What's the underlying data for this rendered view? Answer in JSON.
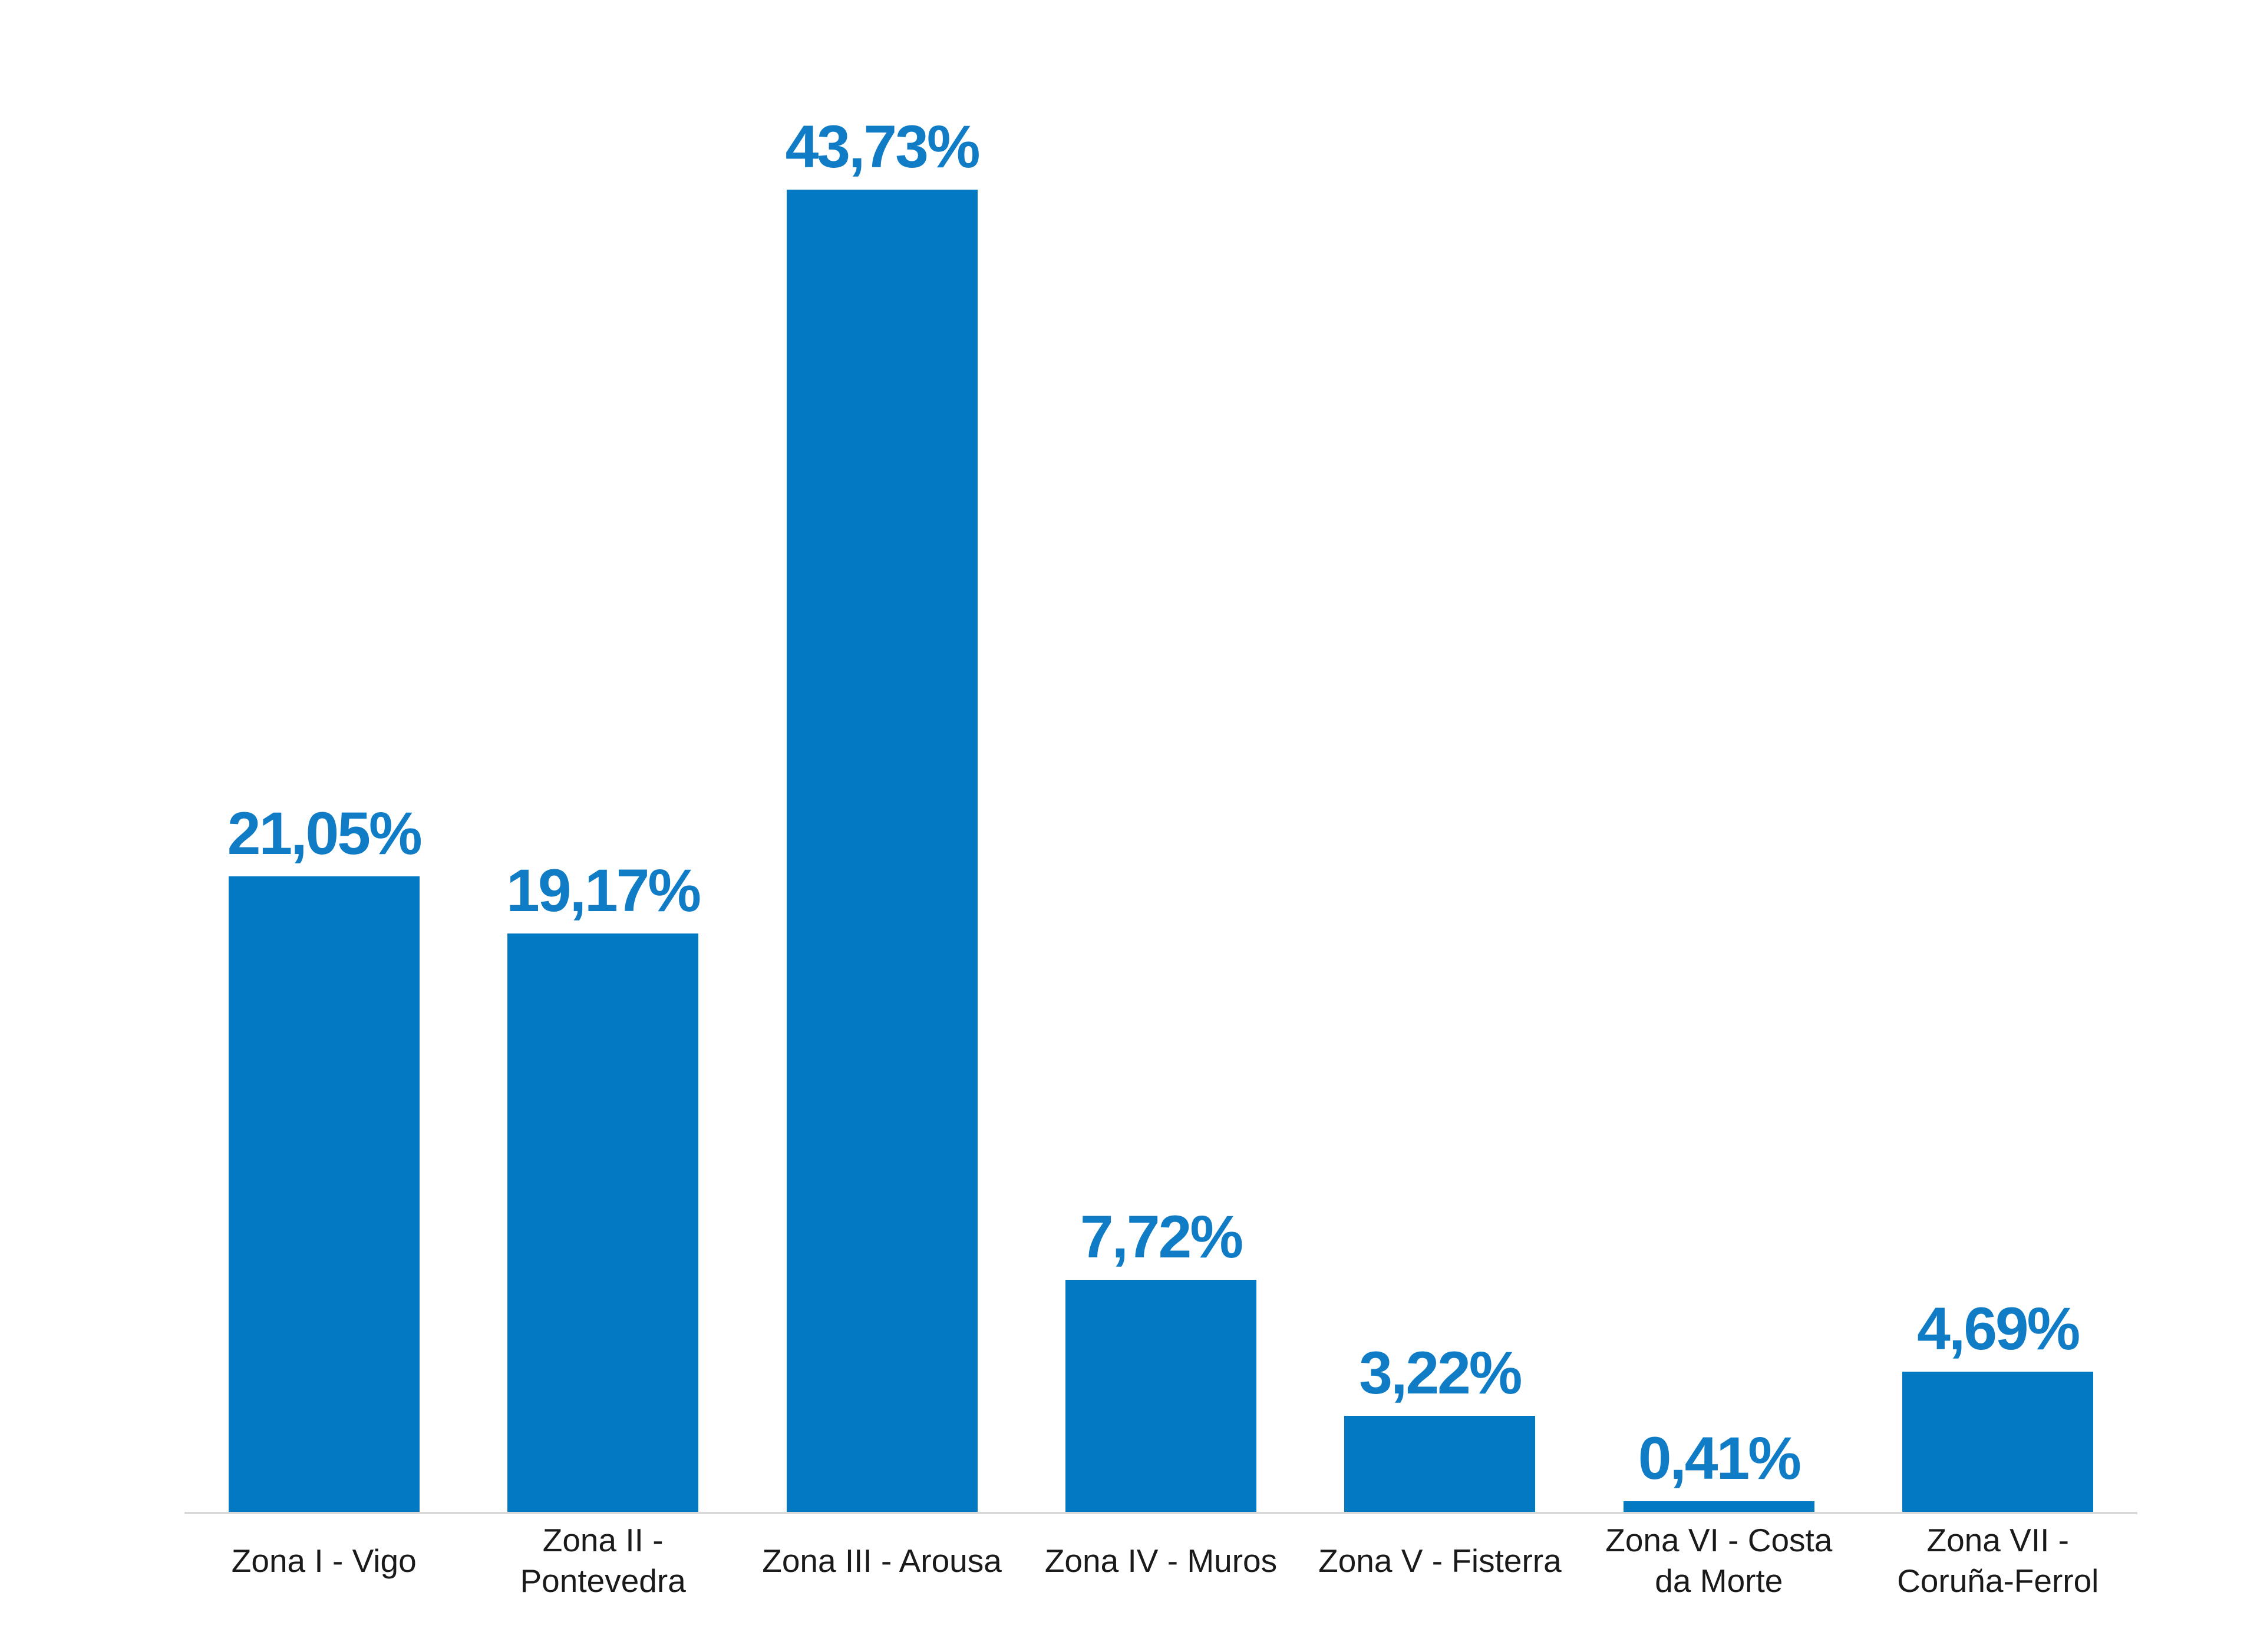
{
  "chart_data": {
    "type": "bar",
    "categories": [
      "Zona I - Vigo",
      "Zona II -\nPontevedra",
      "Zona III - Arousa",
      "Zona IV - Muros",
      "Zona V - Fisterra",
      "Zona VI - Costa\nda Morte",
      "Zona VII -\nCoruña-Ferrol"
    ],
    "values": [
      21.05,
      19.17,
      43.73,
      7.72,
      3.22,
      0.41,
      4.69
    ],
    "value_labels": [
      "21,05%",
      "19,17%",
      "43,73%",
      "7,72%",
      "3,22%",
      "0,41%",
      "4,69%"
    ],
    "xlabel": "",
    "ylabel": "",
    "ylim": [
      0,
      50
    ],
    "grid": false,
    "legend": false,
    "data_label_position": "above-bar",
    "decimal_separator": "comma",
    "colors": {
      "bar": "#0379c4",
      "value_label": "#0f7cc5",
      "category_label": "#1a1a1a",
      "axis_line": "#d9d9d9",
      "background": "#ffffff"
    }
  }
}
